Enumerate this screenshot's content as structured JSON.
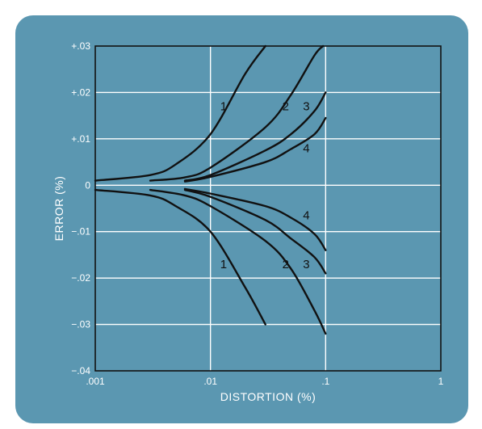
{
  "chart_data": {
    "type": "line",
    "title": "",
    "xlabel": "DISTORTION (%)",
    "ylabel": "ERROR (%)",
    "x_scale": "log",
    "xlim": [
      0.001,
      1
    ],
    "ylim": [
      -0.04,
      0.03
    ],
    "grid": true,
    "x_ticks": [
      {
        "value": 0.001,
        "label": ".001"
      },
      {
        "value": 0.01,
        "label": ".01"
      },
      {
        "value": 0.1,
        "label": ".1"
      },
      {
        "value": 1,
        "label": "1"
      }
    ],
    "y_ticks": [
      {
        "value": 0.03,
        "label": "+.03"
      },
      {
        "value": 0.02,
        "label": "+.02"
      },
      {
        "value": 0.01,
        "label": "+.01"
      },
      {
        "value": 0,
        "label": "0"
      },
      {
        "value": -0.01,
        "label": "−.01"
      },
      {
        "value": -0.02,
        "label": "−.02"
      },
      {
        "value": -0.03,
        "label": "−.03"
      },
      {
        "value": -0.04,
        "label": "−.04"
      }
    ],
    "colors": {
      "panel": "#5b97b1",
      "plot_border": "#111111",
      "grid": "#ffffff",
      "curve": "#111111"
    },
    "series": [
      {
        "label": "1",
        "label_x": 0.013,
        "label_y": 0.017,
        "points": [
          [
            0.001,
            0.001
          ],
          [
            0.003,
            0.0022
          ],
          [
            0.005,
            0.0045
          ],
          [
            0.01,
            0.011
          ],
          [
            0.02,
            0.024
          ],
          [
            0.03,
            0.03
          ]
        ]
      },
      {
        "label": "2",
        "label_x": 0.045,
        "label_y": 0.017,
        "points": [
          [
            0.003,
            0.001
          ],
          [
            0.006,
            0.0017
          ],
          [
            0.01,
            0.0038
          ],
          [
            0.03,
            0.0125
          ],
          [
            0.05,
            0.0195
          ],
          [
            0.08,
            0.028
          ],
          [
            0.095,
            0.03
          ]
        ]
      },
      {
        "label": "3",
        "label_x": 0.068,
        "label_y": 0.017,
        "points": [
          [
            0.006,
            0.001
          ],
          [
            0.01,
            0.0022
          ],
          [
            0.03,
            0.0075
          ],
          [
            0.05,
            0.011
          ],
          [
            0.08,
            0.016
          ],
          [
            0.1,
            0.02
          ]
        ]
      },
      {
        "label": "4",
        "label_x": 0.068,
        "label_y": 0.008,
        "points": [
          [
            0.006,
            0.0008
          ],
          [
            0.01,
            0.0018
          ],
          [
            0.03,
            0.005
          ],
          [
            0.05,
            0.0078
          ],
          [
            0.08,
            0.011
          ],
          [
            0.1,
            0.0145
          ]
        ]
      },
      {
        "label": "1",
        "label_x": 0.013,
        "label_y": -0.017,
        "points": [
          [
            0.001,
            -0.001
          ],
          [
            0.003,
            -0.0022
          ],
          [
            0.005,
            -0.0045
          ],
          [
            0.01,
            -0.01
          ],
          [
            0.02,
            -0.022
          ],
          [
            0.03,
            -0.03
          ]
        ]
      },
      {
        "label": "2",
        "label_x": 0.045,
        "label_y": -0.017,
        "points": [
          [
            0.003,
            -0.001
          ],
          [
            0.006,
            -0.0022
          ],
          [
            0.01,
            -0.0045
          ],
          [
            0.03,
            -0.012
          ],
          [
            0.05,
            -0.018
          ],
          [
            0.08,
            -0.027
          ],
          [
            0.1,
            -0.032
          ]
        ]
      },
      {
        "label": "3",
        "label_x": 0.068,
        "label_y": -0.017,
        "points": [
          [
            0.006,
            -0.001
          ],
          [
            0.01,
            -0.0025
          ],
          [
            0.03,
            -0.0075
          ],
          [
            0.05,
            -0.0115
          ],
          [
            0.08,
            -0.0155
          ],
          [
            0.1,
            -0.019
          ]
        ]
      },
      {
        "label": "4",
        "label_x": 0.068,
        "label_y": -0.0065,
        "points": [
          [
            0.006,
            -0.0008
          ],
          [
            0.01,
            -0.0018
          ],
          [
            0.03,
            -0.0045
          ],
          [
            0.05,
            -0.007
          ],
          [
            0.08,
            -0.0105
          ],
          [
            0.1,
            -0.014
          ]
        ]
      }
    ]
  }
}
